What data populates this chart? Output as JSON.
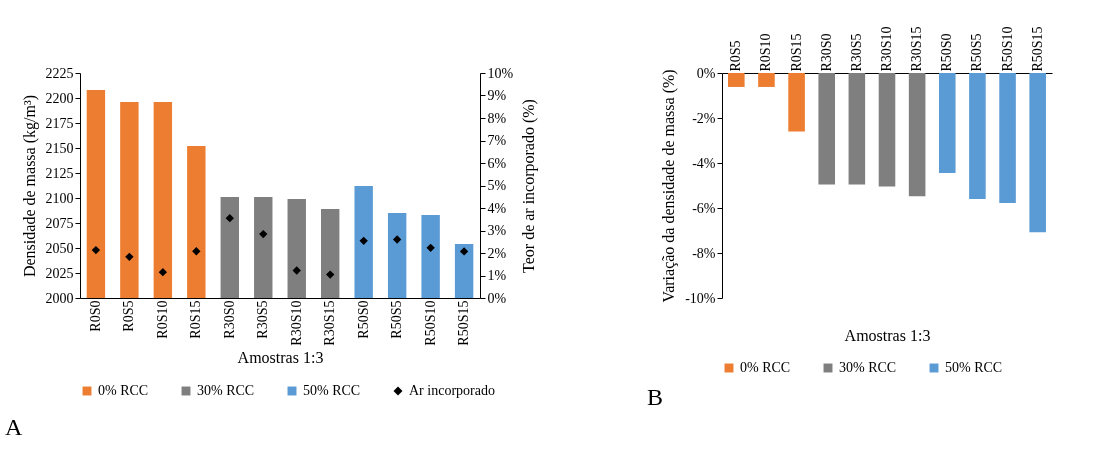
{
  "chart_data": [
    {
      "type": "bar",
      "categories": [
        "R0S0",
        "R0S5",
        "R0S10",
        "R0S15",
        "R30S0",
        "R30S5",
        "R30S10",
        "R30S15",
        "R50S0",
        "R50S5",
        "R50S10",
        "R50S15"
      ],
      "xlabel": "Amostras 1:3",
      "ylabel": "Densidade de massa (kg/m³)",
      "y2label": "Teor de ar incorporado (%)",
      "ylim": [
        2000,
        2225
      ],
      "yticks": [
        2000,
        2025,
        2050,
        2075,
        2100,
        2125,
        2150,
        2175,
        2200,
        2225
      ],
      "y2lim": [
        0,
        10
      ],
      "y2ticks": [
        {
          "value": 0,
          "label": "0%"
        },
        {
          "value": 1,
          "label": "1%"
        },
        {
          "value": 2,
          "label": "2%"
        },
        {
          "value": 3,
          "label": "3%"
        },
        {
          "value": 4,
          "label": "4%"
        },
        {
          "value": 5,
          "label": "5%"
        },
        {
          "value": 6,
          "label": "6%"
        },
        {
          "value": 7,
          "label": "7%"
        },
        {
          "value": 8,
          "label": "8%"
        },
        {
          "value": 9,
          "label": "9%"
        },
        {
          "value": 10,
          "label": "10%"
        }
      ],
      "series": [
        {
          "name": "0% RCC",
          "color": "#ed7d31",
          "values": [
            2208,
            2196,
            2196,
            2152,
            null,
            null,
            null,
            null,
            null,
            null,
            null,
            null
          ]
        },
        {
          "name": "30% RCC",
          "color": "#7f7f7f",
          "values": [
            null,
            null,
            null,
            null,
            2101,
            2101,
            2099,
            2089,
            null,
            null,
            null,
            null
          ]
        },
        {
          "name": "50% RCC",
          "color": "#5b9bd5",
          "values": [
            null,
            null,
            null,
            null,
            null,
            null,
            null,
            null,
            2112,
            2085,
            2083,
            2054
          ]
        },
        {
          "name": "Ar incorporado",
          "type": "scatter",
          "axis": "y2",
          "marker": "diamond",
          "color": "#000000",
          "values": [
            2.13,
            1.83,
            1.15,
            2.08,
            3.55,
            2.84,
            1.22,
            1.04,
            2.54,
            2.6,
            2.23,
            2.07
          ]
        }
      ],
      "annotations": [
        "A"
      ],
      "legend": "bottom",
      "grid": false
    },
    {
      "type": "bar",
      "categories": [
        "R0S5",
        "R0S10",
        "R0S15",
        "R30S0",
        "R30S5",
        "R30S10",
        "R30S15",
        "R50S0",
        "R50S5",
        "R50S10",
        "R50S15"
      ],
      "xlabel": "Amostras 1:3",
      "ylabel": "Variação da densidade de massa (%)",
      "ylim": [
        -10,
        0
      ],
      "yticks": [
        {
          "value": -10,
          "label": "-10%"
        },
        {
          "value": -8,
          "label": "-8%"
        },
        {
          "value": -6,
          "label": "-6%"
        },
        {
          "value": -4,
          "label": "-4%"
        },
        {
          "value": -2,
          "label": "-2%"
        },
        {
          "value": 0,
          "label": "0%"
        }
      ],
      "series": [
        {
          "name": "0% RCC",
          "color": "#ed7d31",
          "values": [
            -0.62,
            -0.62,
            -2.6,
            null,
            null,
            null,
            null,
            null,
            null,
            null,
            null
          ]
        },
        {
          "name": "30% RCC",
          "color": "#7f7f7f",
          "values": [
            null,
            null,
            null,
            -4.96,
            -4.96,
            -5.04,
            -5.48,
            null,
            null,
            null,
            null
          ]
        },
        {
          "name": "50% RCC",
          "color": "#5b9bd5",
          "values": [
            null,
            null,
            null,
            null,
            null,
            null,
            null,
            -4.44,
            -5.6,
            -5.78,
            -7.08
          ]
        }
      ],
      "annotations": [
        "B"
      ],
      "legend": "bottom",
      "grid": false
    }
  ]
}
